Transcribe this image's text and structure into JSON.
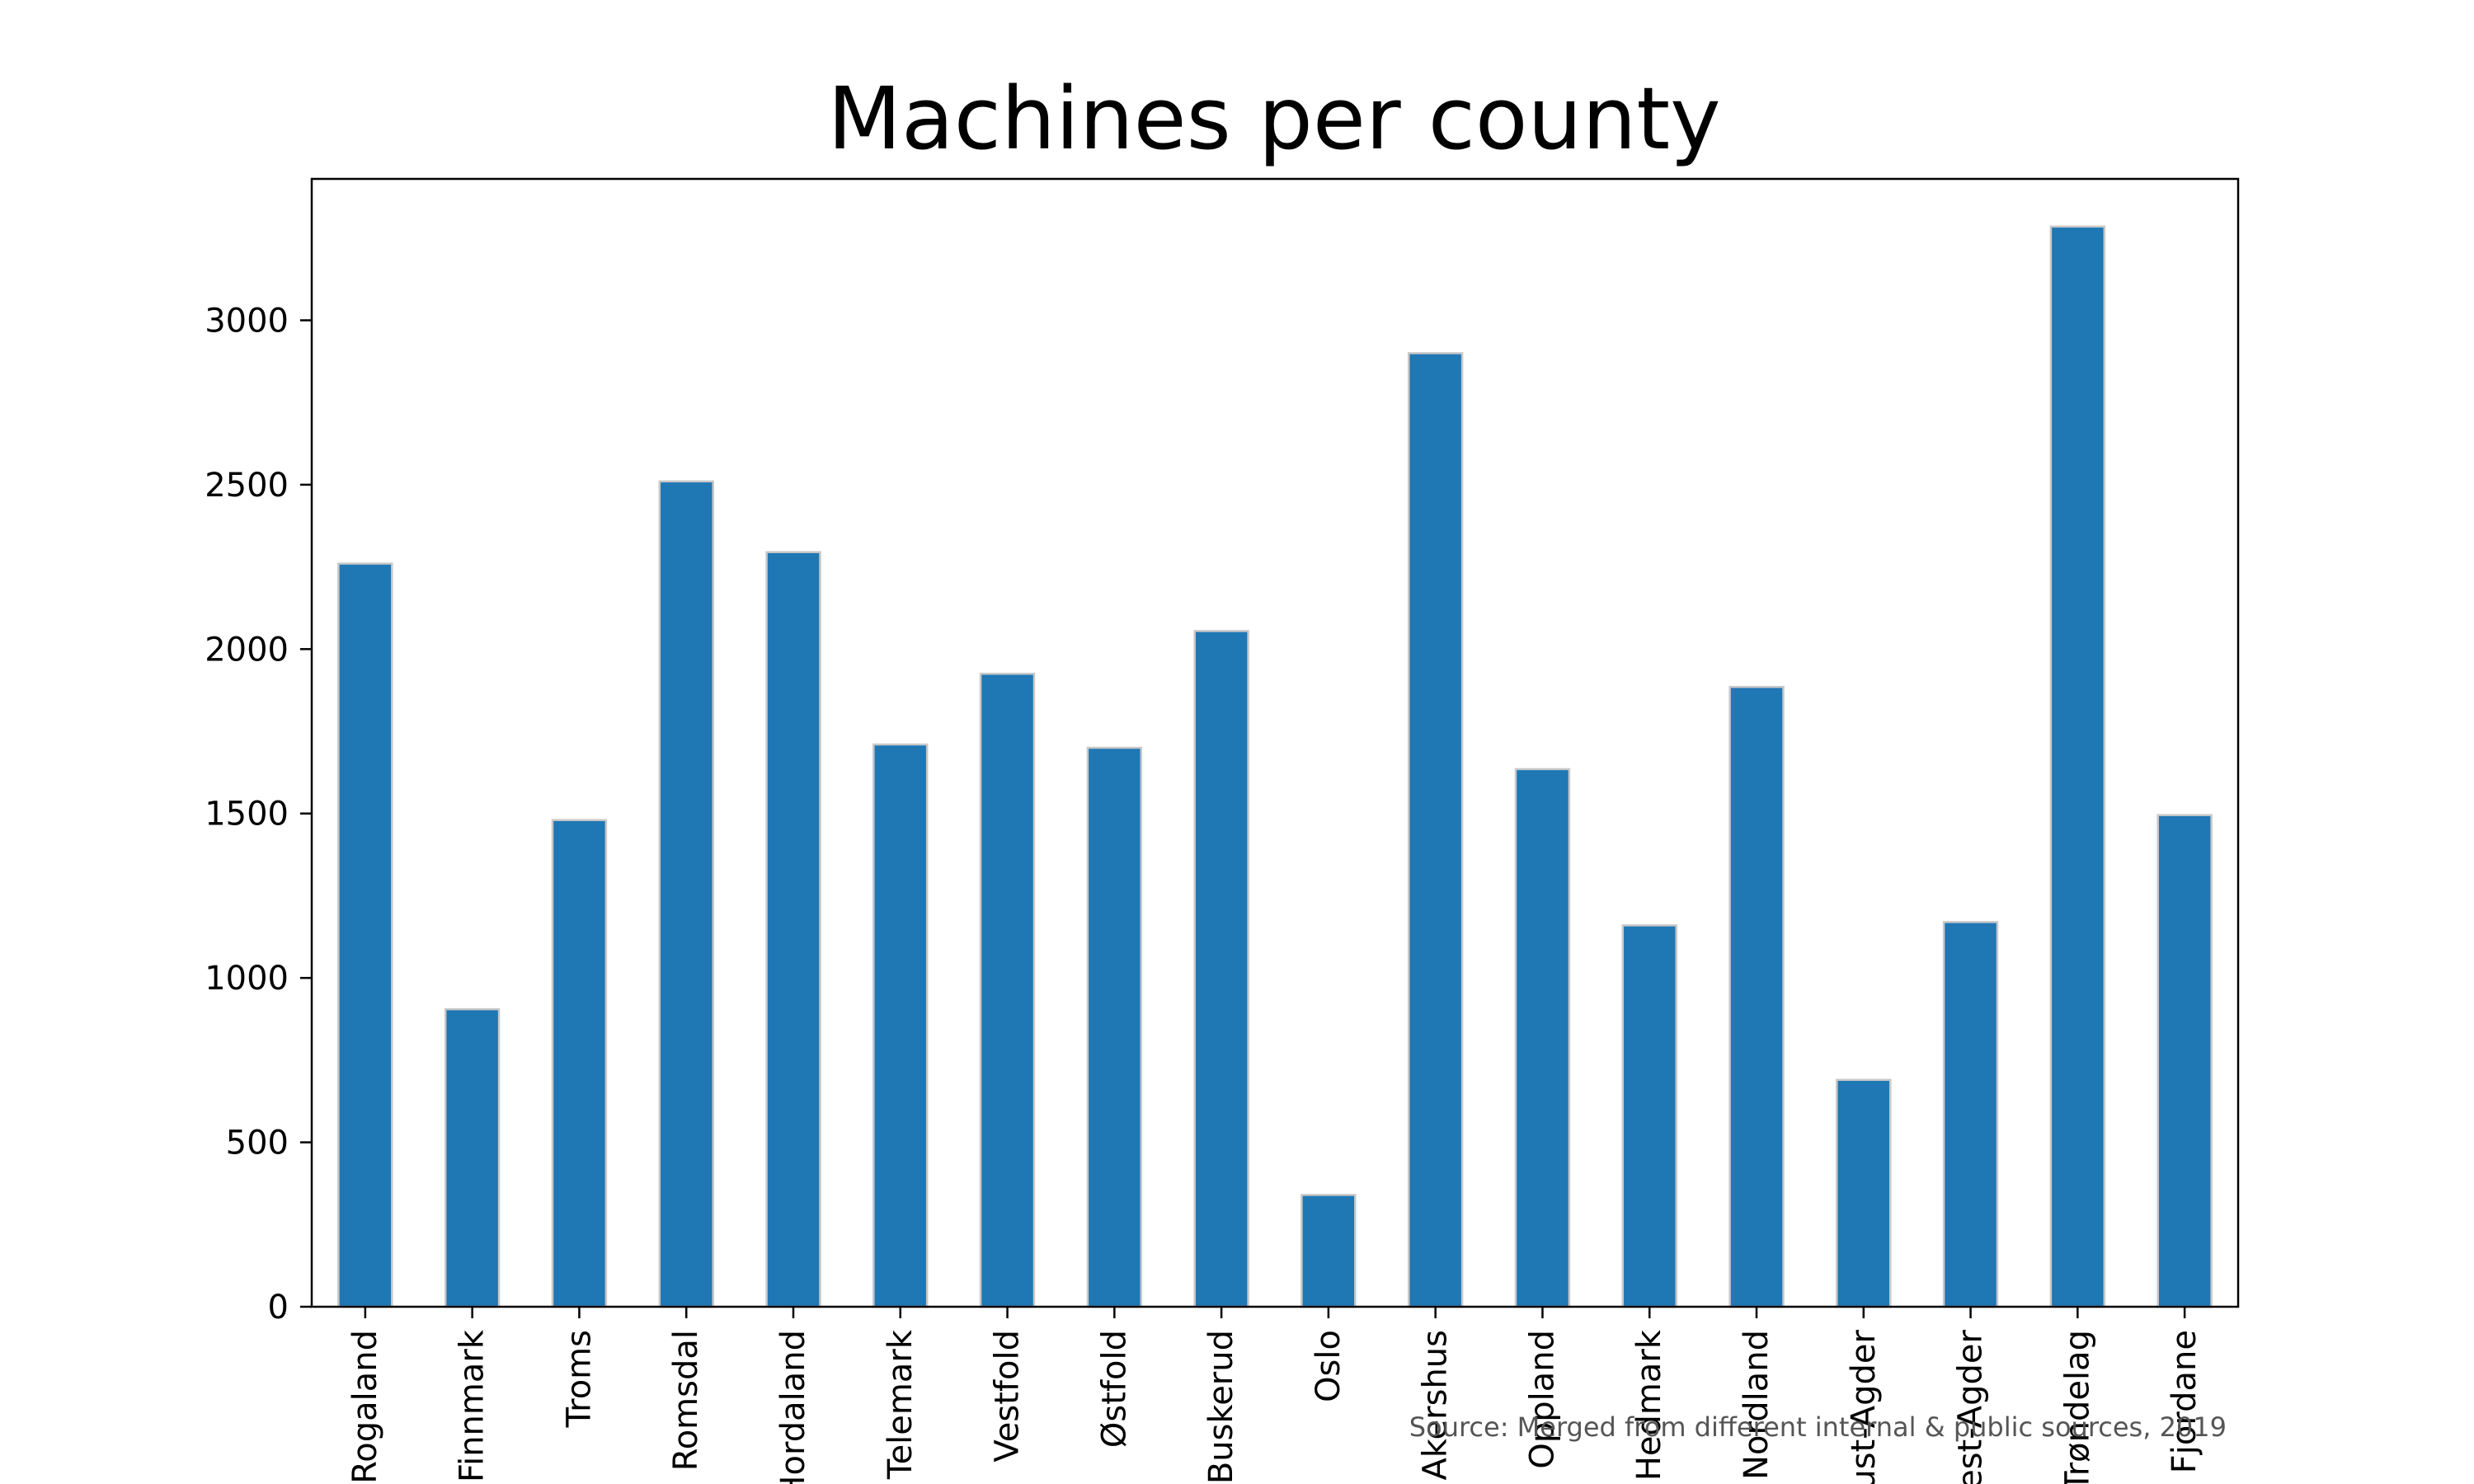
{
  "chart_data": {
    "type": "bar",
    "title": "Machines per county",
    "xlabel": "",
    "ylabel": "",
    "categories": [
      "Rogaland",
      "Finnmark",
      "Troms",
      "Romsdal",
      "Hordaland",
      "Telemark",
      "Vestfold",
      "Østfold",
      "Buskerud",
      "Oslo",
      "Akershus",
      "Oppland",
      "Hedmark",
      "Nordland",
      "Aust-Agder",
      "Vest-Agder",
      "Trøndelag",
      "Fjordane"
    ],
    "values": [
      2260,
      905,
      1480,
      2510,
      2295,
      1710,
      1925,
      1700,
      2055,
      340,
      2900,
      1635,
      1160,
      1885,
      690,
      1170,
      3285,
      1495
    ],
    "yticks": [
      0,
      500,
      1000,
      1500,
      2000,
      2500,
      3000
    ],
    "ylim": [
      0,
      3430
    ],
    "grid": false,
    "annotation": "Source: Merged from different internal & public sources, 2019",
    "colors": {
      "bar": "#1f77b4",
      "bar_edge": "#c8c8c8",
      "axis": "#000000",
      "annotation": "#555555"
    }
  }
}
